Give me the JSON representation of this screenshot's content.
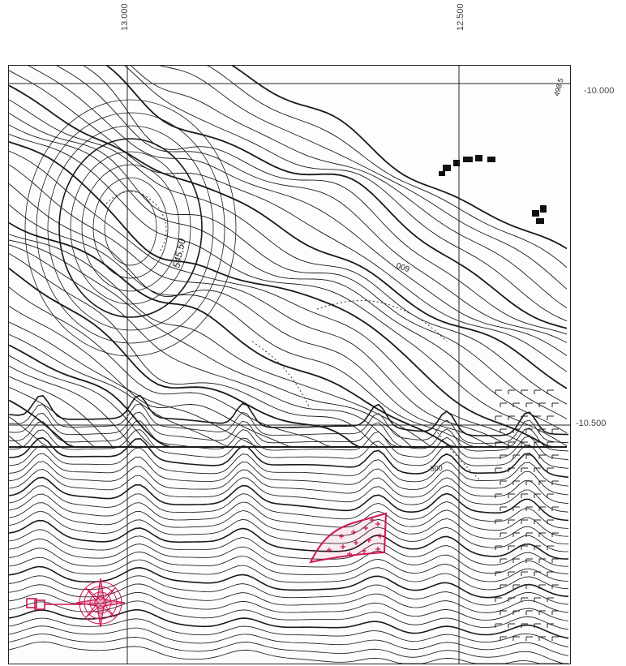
{
  "grid_labels": {
    "easting_left": "13.000",
    "easting_right": "12.500",
    "northing_top": "-10.000",
    "northing_bottom": "-10.500"
  },
  "contour_labels": {
    "spot_height": "545,50",
    "contour_600": "600",
    "contour_500": "500",
    "edge_label": "498,5"
  },
  "colors": {
    "contour": "#1a1a1a",
    "grid": "#222222",
    "highlight": "#d0155a",
    "background": "#fdfdfb"
  },
  "symbols": {
    "compass": "compass-rose-icon",
    "site": "site-area-marker",
    "reference": "reference-square-marker"
  }
}
